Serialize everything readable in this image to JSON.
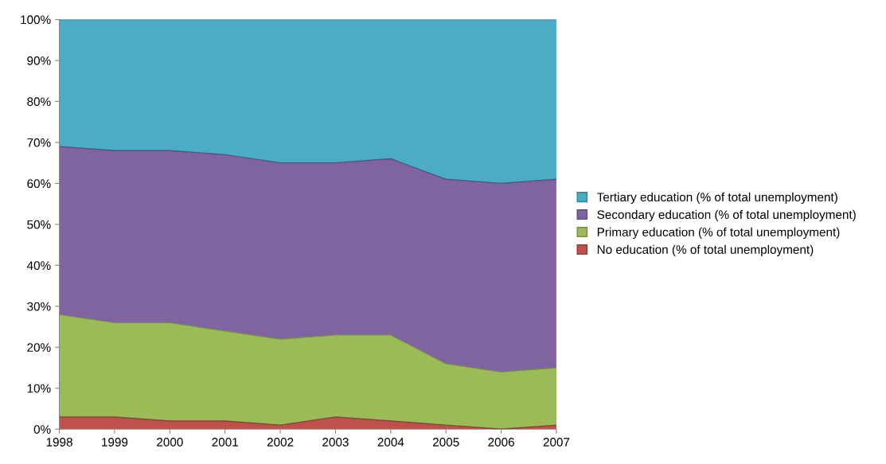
{
  "chart_data": {
    "type": "area",
    "stacked": true,
    "x": [
      1998,
      1999,
      2000,
      2001,
      2002,
      2003,
      2004,
      2005,
      2006,
      2007
    ],
    "xlim": [
      1998,
      2007
    ],
    "xticks": [
      1998,
      1999,
      2000,
      2001,
      2002,
      2003,
      2004,
      2005,
      2006,
      2007
    ],
    "ylim": [
      0,
      100
    ],
    "yticks": [
      {
        "value": 0,
        "label": "0%"
      },
      {
        "value": 10,
        "label": "10%"
      },
      {
        "value": 20,
        "label": "20%"
      },
      {
        "value": 30,
        "label": "30%"
      },
      {
        "value": 40,
        "label": "40%"
      },
      {
        "value": 50,
        "label": "50%"
      },
      {
        "value": 60,
        "label": "60%"
      },
      {
        "value": 70,
        "label": "70%"
      },
      {
        "value": 80,
        "label": "80%"
      },
      {
        "value": 90,
        "label": "90%"
      },
      {
        "value": 100,
        "label": "100%"
      }
    ],
    "series": [
      {
        "name": "No education (% of total unemployment)",
        "color": "#c0504d",
        "values": [
          3,
          3,
          2,
          2,
          1,
          3,
          2,
          1,
          0,
          1
        ]
      },
      {
        "name": "Primary education (% of total unemployment)",
        "color": "#9bbb59",
        "values": [
          25,
          23,
          24,
          22,
          21,
          20,
          21,
          15,
          14,
          14
        ]
      },
      {
        "name": "Secondary education (% of total unemployment)",
        "color": "#8064a2",
        "values": [
          41,
          42,
          42,
          43,
          43,
          42,
          43,
          45,
          46,
          46
        ]
      },
      {
        "name": "Tertiary education (% of total unemployment)",
        "color": "#4bacc6",
        "values": [
          31,
          32,
          32,
          33,
          35,
          35,
          34,
          39,
          40,
          39
        ]
      }
    ],
    "legend": "right",
    "grid": false
  }
}
